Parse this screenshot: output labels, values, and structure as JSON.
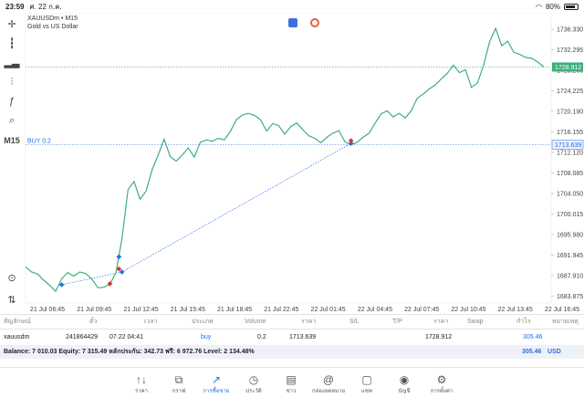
{
  "status": {
    "time": "23:59",
    "date": "ศ. 22 ก.ค.",
    "battery": "80%"
  },
  "toolbar": {
    "timeframe": "M15"
  },
  "chart": {
    "symbol_line": "XAUUSDm • M15",
    "description": "Gold vs US Dollar",
    "position_label": "BUY 0.2",
    "bid_label": "1728.912",
    "position_price_label": "1713.639"
  },
  "chart_data": {
    "type": "line",
    "series": [
      {
        "values": [
          1689.6,
          1688.6,
          1688.2,
          1687.0,
          1686.0,
          1684.8,
          1687.3,
          1688.5,
          1687.8,
          1688.6,
          1688.3,
          1687.2,
          1685.5,
          1685.6,
          1686.2,
          1688.5,
          1695.2,
          1704.8,
          1706.4,
          1702.9,
          1704.5,
          1708.7,
          1711.6,
          1714.7,
          1711.3,
          1710.4,
          1711.6,
          1713.0,
          1711.2,
          1714.1,
          1714.6,
          1714.3,
          1714.9,
          1714.6,
          1716.3,
          1718.6,
          1719.5,
          1719.8,
          1719.4,
          1718.5,
          1716.3,
          1717.8,
          1717.4,
          1715.7,
          1717.2,
          1717.9,
          1716.6,
          1715.4,
          1714.9,
          1714.0,
          1715.1,
          1715.9,
          1716.4,
          1714.2,
          1713.6,
          1714.1,
          1715.1,
          1715.9,
          1717.9,
          1719.7,
          1720.3,
          1719.1,
          1719.8,
          1718.9,
          1720.3,
          1722.8,
          1723.6,
          1724.6,
          1725.4,
          1726.6,
          1727.7,
          1729.3,
          1727.8,
          1728.4,
          1724.9,
          1725.8,
          1729.3,
          1733.9,
          1736.5,
          1733.1,
          1734.0,
          1731.8,
          1731.4,
          1730.8,
          1730.6,
          1729.9,
          1728.9
        ]
      }
    ],
    "entry_line": {
      "from": 1686.1,
      "to": 1713.9
    },
    "bid": 1728.912,
    "position_price": 1713.639,
    "ylim": [
      1682.5,
      1738.5
    ],
    "yticks": [
      "1736.330",
      "1732.295",
      "1728.260",
      "1724.225",
      "1720.190",
      "1716.155",
      "1712.120",
      "1708.085",
      "1704.050",
      "1700.015",
      "1695.980",
      "1691.945",
      "1687.910",
      "1683.875"
    ],
    "xticks": [
      "21 Jul 06:45",
      "21 Jul 09:45",
      "21 Jul 12:45",
      "21 Jul 15:45",
      "21 Jul 18:45",
      "21 Jul 22:45",
      "22 Jul 01:45",
      "22 Jul 04:45",
      "22 Jul 07:45",
      "22 Jul 10:45",
      "22 Jul 13:45",
      "22 Jul 16:45"
    ],
    "colors": {
      "line": "#3fae7d",
      "entry": "#2a6de0",
      "bid_line": "#3fae7d"
    }
  },
  "table": {
    "headers": [
      "สัญลักษณ์",
      "ตั๋ว",
      "เวลา",
      "ประเภท",
      "Volume",
      "ราคา",
      "S/L",
      "T/P",
      "ราคา",
      "Swap",
      "กำไร",
      "หมายเหตุ"
    ],
    "row": {
      "symbol": "xauusdm",
      "ticket": "241864429",
      "time": "07.22 04:41",
      "type": "buy",
      "volume": "0.2",
      "price": "1713.639",
      "current": "1728.912",
      "profit": "305.46"
    }
  },
  "balance": {
    "text": "Balance: 7 010.03 Equity: 7 315.49 หลักประกัน: 342.73 ฟรี: 6 972.76 Level: 2 134.48%",
    "value": "305.46",
    "currency": "USD"
  },
  "nav": [
    {
      "label": "ราคา",
      "icon": "↑↓"
    },
    {
      "label": "กราฟ",
      "icon": "⧉"
    },
    {
      "label": "การซื้อขาย",
      "icon": "↗"
    },
    {
      "label": "ประวัติ",
      "icon": "◷"
    },
    {
      "label": "ข่าว",
      "icon": "▤"
    },
    {
      "label": "กล่องจดหมาย",
      "icon": "@"
    },
    {
      "label": "แชท",
      "icon": "▢"
    },
    {
      "label": "บัญชี",
      "icon": "◉"
    },
    {
      "label": "การตั้งค่า",
      "icon": "⚙"
    }
  ]
}
